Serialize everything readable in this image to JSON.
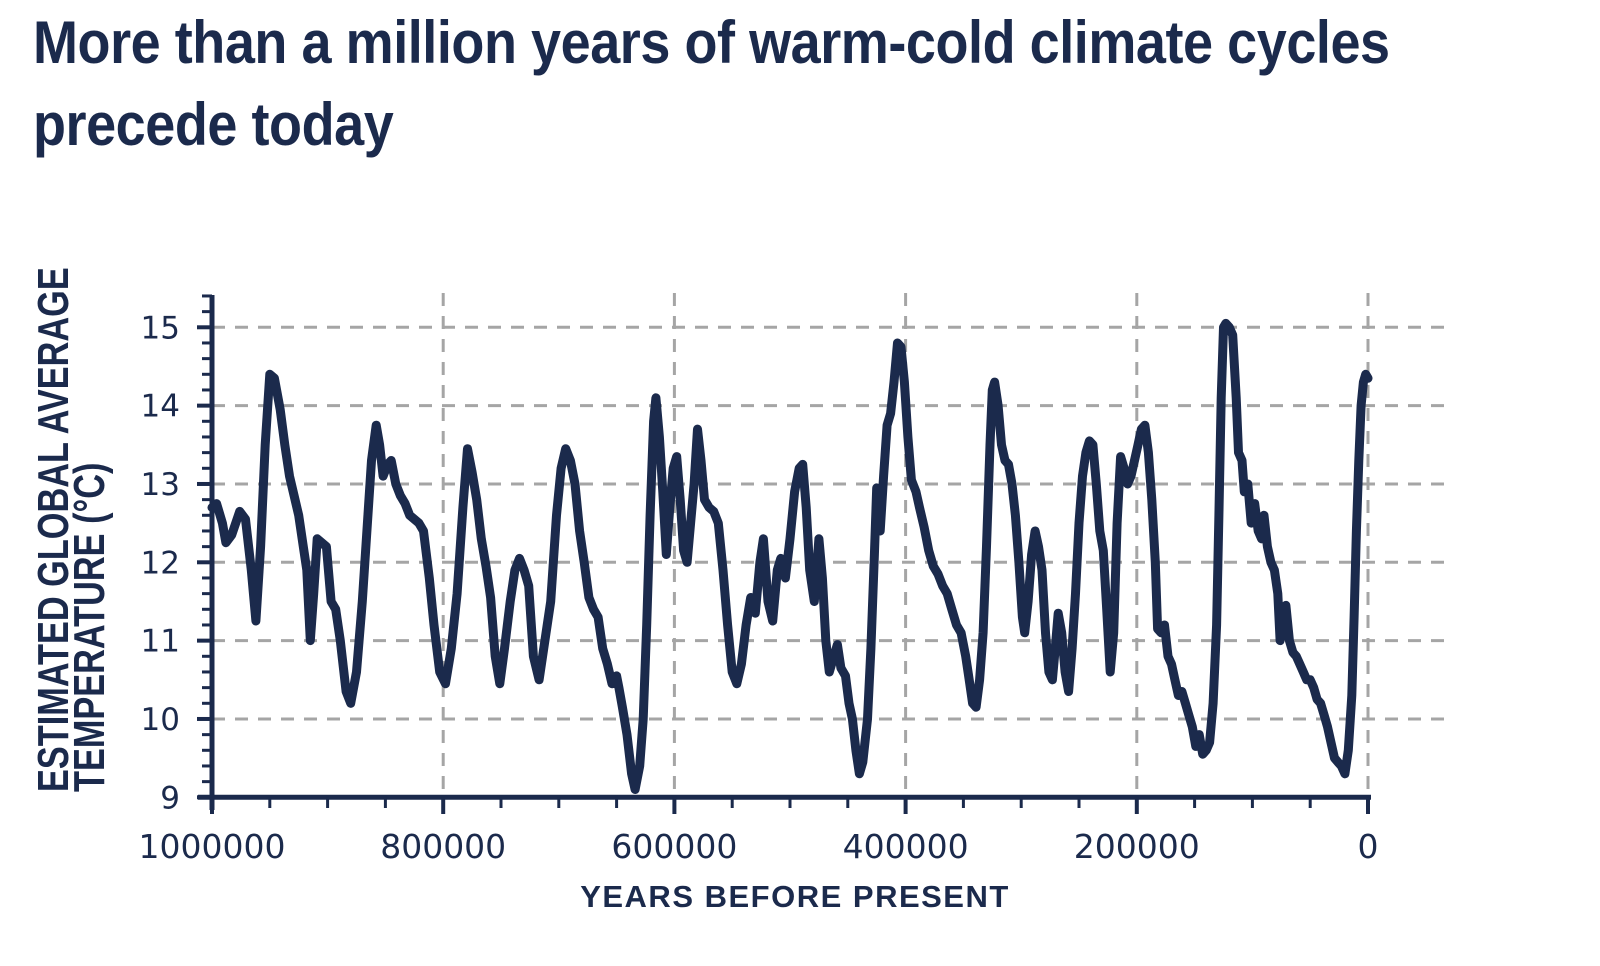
{
  "title": {
    "line1": "More than a million years of warm-cold climate cycles",
    "line2": "precede today"
  },
  "colors": {
    "navy": "#1b2a4c",
    "grid": "#a5a5a5",
    "background": "#ffffff"
  },
  "chart_data": {
    "type": "line",
    "title": "More than a million years of warm-cold climate cycles precede today",
    "xlabel": "YEARS BEFORE PRESENT",
    "ylabel_line1": "ESTIMATED GLOBAL AVERAGE",
    "ylabel_line2": "TEMPERATURE (°C)",
    "x_unit": "thousands of years before present (axis reversed, 1000000 at left)",
    "x_domain": [
      1000,
      0
    ],
    "y_domain": [
      9,
      15
    ],
    "x_ticks": [
      {
        "value": 1000,
        "label": "1000000"
      },
      {
        "value": 800,
        "label": "800000"
      },
      {
        "value": 600,
        "label": "600000"
      },
      {
        "value": 400,
        "label": "400000"
      },
      {
        "value": 200,
        "label": "200000"
      },
      {
        "value": 0,
        "label": "0"
      }
    ],
    "x_minor_step": 50,
    "y_ticks": [
      {
        "value": 9,
        "label": "9"
      },
      {
        "value": 10,
        "label": "10"
      },
      {
        "value": 11,
        "label": "11"
      },
      {
        "value": 12,
        "label": "12"
      },
      {
        "value": 13,
        "label": "13"
      },
      {
        "value": 14,
        "label": "14"
      },
      {
        "value": 15,
        "label": "15"
      }
    ],
    "y_minor_step": 0.2,
    "grid": "dashed",
    "legend": "none",
    "series": [
      {
        "name": "Estimated global average temperature (°C)",
        "points": [
          [
            1000,
            12.7
          ],
          [
            996,
            12.75
          ],
          [
            991,
            12.5
          ],
          [
            988,
            12.25
          ],
          [
            983,
            12.35
          ],
          [
            976,
            12.65
          ],
          [
            971,
            12.55
          ],
          [
            966,
            11.9
          ],
          [
            962,
            11.25
          ],
          [
            958,
            12.2
          ],
          [
            954,
            13.5
          ],
          [
            950,
            14.4
          ],
          [
            946,
            14.35
          ],
          [
            941,
            13.95
          ],
          [
            937,
            13.5
          ],
          [
            933,
            13.1
          ],
          [
            929,
            12.85
          ],
          [
            925,
            12.6
          ],
          [
            921,
            12.2
          ],
          [
            918,
            11.9
          ],
          [
            915,
            11.0
          ],
          [
            912,
            11.6
          ],
          [
            909,
            12.3
          ],
          [
            905,
            12.25
          ],
          [
            901,
            12.2
          ],
          [
            897,
            11.5
          ],
          [
            893,
            11.4
          ],
          [
            889,
            11.0
          ],
          [
            884,
            10.35
          ],
          [
            880,
            10.2
          ],
          [
            875,
            10.6
          ],
          [
            870,
            11.5
          ],
          [
            866,
            12.4
          ],
          [
            862,
            13.3
          ],
          [
            858,
            13.75
          ],
          [
            855,
            13.5
          ],
          [
            852,
            13.1
          ],
          [
            848,
            13.25
          ],
          [
            845,
            13.3
          ],
          [
            841,
            13.0
          ],
          [
            837,
            12.85
          ],
          [
            833,
            12.75
          ],
          [
            829,
            12.6
          ],
          [
            825,
            12.55
          ],
          [
            821,
            12.5
          ],
          [
            817,
            12.4
          ],
          [
            812,
            11.8
          ],
          [
            808,
            11.2
          ],
          [
            803,
            10.6
          ],
          [
            798,
            10.45
          ],
          [
            793,
            10.9
          ],
          [
            788,
            11.6
          ],
          [
            783,
            12.7
          ],
          [
            779,
            13.45
          ],
          [
            775,
            13.15
          ],
          [
            771,
            12.8
          ],
          [
            767,
            12.3
          ],
          [
            763,
            11.95
          ],
          [
            759,
            11.55
          ],
          [
            755,
            10.8
          ],
          [
            751,
            10.45
          ],
          [
            747,
            10.9
          ],
          [
            742,
            11.5
          ],
          [
            738,
            11.9
          ],
          [
            734,
            12.05
          ],
          [
            730,
            11.9
          ],
          [
            726,
            11.7
          ],
          [
            722,
            10.8
          ],
          [
            717,
            10.5
          ],
          [
            712,
            11.0
          ],
          [
            707,
            11.5
          ],
          [
            702,
            12.6
          ],
          [
            698,
            13.2
          ],
          [
            694,
            13.45
          ],
          [
            690,
            13.3
          ],
          [
            686,
            13.0
          ],
          [
            682,
            12.4
          ],
          [
            678,
            12.0
          ],
          [
            674,
            11.55
          ],
          [
            670,
            11.4
          ],
          [
            666,
            11.3
          ],
          [
            662,
            10.9
          ],
          [
            658,
            10.7
          ],
          [
            654,
            10.45
          ],
          [
            650,
            10.55
          ],
          [
            648,
            10.4
          ],
          [
            645,
            10.15
          ],
          [
            641,
            9.8
          ],
          [
            637,
            9.3
          ],
          [
            634,
            9.1
          ],
          [
            630,
            9.4
          ],
          [
            627,
            10.0
          ],
          [
            624,
            11.2
          ],
          [
            621,
            12.6
          ],
          [
            618,
            13.8
          ],
          [
            616,
            14.1
          ],
          [
            613,
            13.6
          ],
          [
            610,
            12.9
          ],
          [
            607,
            12.1
          ],
          [
            604,
            12.7
          ],
          [
            601,
            13.2
          ],
          [
            598,
            13.35
          ],
          [
            595,
            12.8
          ],
          [
            592,
            12.15
          ],
          [
            589,
            12.0
          ],
          [
            586,
            12.5
          ],
          [
            583,
            13.0
          ],
          [
            580,
            13.7
          ],
          [
            577,
            13.3
          ],
          [
            574,
            12.8
          ],
          [
            570,
            12.7
          ],
          [
            566,
            12.65
          ],
          [
            562,
            12.5
          ],
          [
            558,
            11.9
          ],
          [
            554,
            11.2
          ],
          [
            550,
            10.6
          ],
          [
            546,
            10.45
          ],
          [
            542,
            10.7
          ],
          [
            538,
            11.2
          ],
          [
            534,
            11.55
          ],
          [
            530,
            11.35
          ],
          [
            526,
            12.0
          ],
          [
            523,
            12.3
          ],
          [
            519,
            11.5
          ],
          [
            515,
            11.25
          ],
          [
            511,
            11.9
          ],
          [
            508,
            12.05
          ],
          [
            504,
            11.8
          ],
          [
            500,
            12.3
          ],
          [
            496,
            12.9
          ],
          [
            492,
            13.2
          ],
          [
            489,
            13.25
          ],
          [
            486,
            12.7
          ],
          [
            483,
            11.9
          ],
          [
            479,
            11.5
          ],
          [
            475,
            12.3
          ],
          [
            472,
            11.8
          ],
          [
            469,
            11.0
          ],
          [
            466,
            10.6
          ],
          [
            462,
            10.8
          ],
          [
            459,
            10.95
          ],
          [
            456,
            10.65
          ],
          [
            452,
            10.55
          ],
          [
            449,
            10.2
          ],
          [
            446,
            10.0
          ],
          [
            443,
            9.6
          ],
          [
            440,
            9.3
          ],
          [
            437,
            9.45
          ],
          [
            433,
            10.0
          ],
          [
            430,
            10.9
          ],
          [
            427,
            12.1
          ],
          [
            425,
            12.95
          ],
          [
            422,
            12.4
          ],
          [
            419,
            13.1
          ],
          [
            416,
            13.75
          ],
          [
            413,
            13.9
          ],
          [
            410,
            14.3
          ],
          [
            407,
            14.8
          ],
          [
            404,
            14.75
          ],
          [
            401,
            14.3
          ],
          [
            398,
            13.6
          ],
          [
            395,
            13.05
          ],
          [
            391,
            12.9
          ],
          [
            388,
            12.7
          ],
          [
            384,
            12.45
          ],
          [
            380,
            12.15
          ],
          [
            376,
            11.95
          ],
          [
            372,
            11.85
          ],
          [
            368,
            11.7
          ],
          [
            364,
            11.6
          ],
          [
            360,
            11.4
          ],
          [
            356,
            11.2
          ],
          [
            352,
            11.1
          ],
          [
            348,
            10.8
          ],
          [
            345,
            10.5
          ],
          [
            342,
            10.2
          ],
          [
            339,
            10.15
          ],
          [
            336,
            10.5
          ],
          [
            333,
            11.1
          ],
          [
            330,
            12.2
          ],
          [
            327,
            13.5
          ],
          [
            325,
            14.2
          ],
          [
            323,
            14.3
          ],
          [
            320,
            14.0
          ],
          [
            317,
            13.5
          ],
          [
            314,
            13.3
          ],
          [
            311,
            13.25
          ],
          [
            308,
            13.0
          ],
          [
            305,
            12.6
          ],
          [
            302,
            12.0
          ],
          [
            299,
            11.3
          ],
          [
            297,
            11.1
          ],
          [
            294,
            11.5
          ],
          [
            291,
            12.1
          ],
          [
            288,
            12.4
          ],
          [
            285,
            12.2
          ],
          [
            282,
            11.9
          ],
          [
            279,
            11.1
          ],
          [
            276,
            10.6
          ],
          [
            273,
            10.5
          ],
          [
            270,
            11.0
          ],
          [
            268,
            11.35
          ],
          [
            265,
            11.1
          ],
          [
            262,
            10.6
          ],
          [
            259,
            10.35
          ],
          [
            256,
            10.9
          ],
          [
            253,
            11.6
          ],
          [
            250,
            12.5
          ],
          [
            247,
            13.1
          ],
          [
            244,
            13.4
          ],
          [
            241,
            13.55
          ],
          [
            238,
            13.5
          ],
          [
            235,
            13.0
          ],
          [
            232,
            12.4
          ],
          [
            229,
            12.15
          ],
          [
            226,
            11.4
          ],
          [
            223,
            10.6
          ],
          [
            220,
            11.1
          ],
          [
            217,
            12.5
          ],
          [
            214,
            13.35
          ],
          [
            211,
            13.2
          ],
          [
            208,
            13.0
          ],
          [
            205,
            13.1
          ],
          [
            202,
            13.3
          ],
          [
            199,
            13.5
          ],
          [
            196,
            13.7
          ],
          [
            193,
            13.75
          ],
          [
            190,
            13.4
          ],
          [
            187,
            12.8
          ],
          [
            184,
            12.0
          ],
          [
            182,
            11.15
          ],
          [
            179,
            11.1
          ],
          [
            176,
            11.2
          ],
          [
            173,
            10.8
          ],
          [
            170,
            10.7
          ],
          [
            167,
            10.5
          ],
          [
            164,
            10.3
          ],
          [
            161,
            10.35
          ],
          [
            158,
            10.2
          ],
          [
            155,
            10.05
          ],
          [
            152,
            9.9
          ],
          [
            149,
            9.65
          ],
          [
            146,
            9.8
          ],
          [
            143,
            9.55
          ],
          [
            140,
            9.6
          ],
          [
            137,
            9.7
          ],
          [
            134,
            10.2
          ],
          [
            131,
            11.2
          ],
          [
            129,
            12.6
          ],
          [
            127,
            14.1
          ],
          [
            125,
            15.0
          ],
          [
            123,
            15.05
          ],
          [
            120,
            15.0
          ],
          [
            117,
            14.9
          ],
          [
            114,
            14.1
          ],
          [
            112,
            13.4
          ],
          [
            109,
            13.3
          ],
          [
            107,
            12.9
          ],
          [
            104,
            13.0
          ],
          [
            101,
            12.5
          ],
          [
            98,
            12.75
          ],
          [
            95,
            12.4
          ],
          [
            92,
            12.3
          ],
          [
            90,
            12.6
          ],
          [
            87,
            12.2
          ],
          [
            84,
            12.0
          ],
          [
            81,
            11.9
          ],
          [
            78,
            11.6
          ],
          [
            76,
            11.0
          ],
          [
            73,
            11.2
          ],
          [
            71,
            11.45
          ],
          [
            68,
            11.0
          ],
          [
            65,
            10.85
          ],
          [
            62,
            10.8
          ],
          [
            59,
            10.7
          ],
          [
            56,
            10.6
          ],
          [
            53,
            10.5
          ],
          [
            50,
            10.5
          ],
          [
            47,
            10.4
          ],
          [
            44,
            10.25
          ],
          [
            41,
            10.2
          ],
          [
            38,
            10.05
          ],
          [
            35,
            9.9
          ],
          [
            32,
            9.7
          ],
          [
            29,
            9.5
          ],
          [
            26,
            9.45
          ],
          [
            23,
            9.4
          ],
          [
            20,
            9.3
          ],
          [
            17,
            9.6
          ],
          [
            14,
            10.3
          ],
          [
            12,
            11.3
          ],
          [
            10,
            12.4
          ],
          [
            8,
            13.3
          ],
          [
            6,
            14.0
          ],
          [
            4,
            14.3
          ],
          [
            2,
            14.4
          ],
          [
            0,
            14.35
          ]
        ]
      }
    ]
  }
}
